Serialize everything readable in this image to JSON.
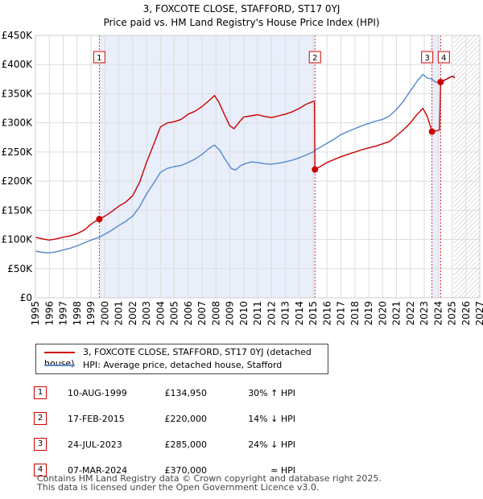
{
  "title_line1": "3, FOXCOTE CLOSE, STAFFORD, ST17 0YJ",
  "title_line2": "Price paid vs. HM Land Registry's House Price Index (HPI)",
  "chart_data": {
    "type": "line",
    "title": "3, FOXCOTE CLOSE, STAFFORD, ST17 0YJ — Price paid vs. HM Land Registry's House Price Index (HPI)",
    "xlim": [
      1995,
      2027
    ],
    "ylim": [
      0,
      450000
    ],
    "x_ticks": [
      "1995",
      "1996",
      "1997",
      "1998",
      "1999",
      "2000",
      "2001",
      "2002",
      "2003",
      "2004",
      "2005",
      "2006",
      "2007",
      "2008",
      "2009",
      "2010",
      "2011",
      "2012",
      "2013",
      "2014",
      "2015",
      "2016",
      "2017",
      "2018",
      "2019",
      "2020",
      "2021",
      "2022",
      "2023",
      "2024",
      "2025",
      "2026",
      "2027"
    ],
    "y_ticks": [
      {
        "value": 0,
        "label": "£0"
      },
      {
        "value": 50000,
        "label": "£50K"
      },
      {
        "value": 100000,
        "label": "£100K"
      },
      {
        "value": 150000,
        "label": "£150K"
      },
      {
        "value": 200000,
        "label": "£200K"
      },
      {
        "value": 250000,
        "label": "£250K"
      },
      {
        "value": 300000,
        "label": "£300K"
      },
      {
        "value": 350000,
        "label": "£350K"
      },
      {
        "value": 400000,
        "label": "£400K"
      },
      {
        "value": 450000,
        "label": "£450K"
      }
    ],
    "shaded_ranges": [
      [
        1999.6,
        2015.13
      ],
      [
        2023.56,
        2024.18
      ]
    ],
    "forecast_start": 2025.1,
    "series": [
      {
        "name": "3, FOXCOTE CLOSE, STAFFORD, ST17 0YJ (detached house)",
        "color": "#cc0000",
        "points": [
          [
            1995.0,
            104000
          ],
          [
            1995.5,
            101000
          ],
          [
            1996.0,
            99000
          ],
          [
            1996.5,
            101000
          ],
          [
            1997.0,
            104000
          ],
          [
            1997.5,
            106000
          ],
          [
            1998.0,
            110000
          ],
          [
            1998.5,
            116000
          ],
          [
            1999.0,
            126000
          ],
          [
            1999.3,
            131000
          ],
          [
            1999.6,
            134950
          ],
          [
            2000.0,
            140000
          ],
          [
            2000.5,
            148000
          ],
          [
            2001.0,
            157000
          ],
          [
            2001.5,
            164000
          ],
          [
            2002.0,
            175000
          ],
          [
            2002.5,
            198000
          ],
          [
            2003.0,
            232000
          ],
          [
            2003.5,
            262000
          ],
          [
            2004.0,
            293000
          ],
          [
            2004.5,
            300000
          ],
          [
            2005.0,
            302000
          ],
          [
            2005.5,
            306000
          ],
          [
            2006.0,
            315000
          ],
          [
            2006.5,
            320000
          ],
          [
            2007.0,
            328000
          ],
          [
            2007.5,
            338000
          ],
          [
            2007.9,
            347000
          ],
          [
            2008.2,
            336000
          ],
          [
            2008.6,
            315000
          ],
          [
            2009.0,
            295000
          ],
          [
            2009.3,
            290000
          ],
          [
            2009.7,
            302000
          ],
          [
            2010.0,
            310000
          ],
          [
            2010.5,
            312000
          ],
          [
            2011.0,
            314000
          ],
          [
            2011.5,
            311000
          ],
          [
            2012.0,
            309000
          ],
          [
            2012.5,
            312000
          ],
          [
            2013.0,
            315000
          ],
          [
            2013.5,
            319000
          ],
          [
            2014.0,
            325000
          ],
          [
            2014.5,
            332000
          ],
          [
            2015.0,
            337000
          ],
          [
            2015.1,
            336000
          ],
          [
            2015.13,
            220000
          ],
          [
            2015.5,
            225000
          ],
          [
            2016.0,
            232000
          ],
          [
            2016.5,
            237000
          ],
          [
            2017.0,
            242000
          ],
          [
            2017.5,
            246000
          ],
          [
            2018.0,
            250000
          ],
          [
            2018.5,
            254000
          ],
          [
            2019.0,
            257000
          ],
          [
            2019.5,
            260000
          ],
          [
            2020.0,
            264000
          ],
          [
            2020.5,
            268000
          ],
          [
            2021.0,
            278000
          ],
          [
            2021.5,
            288000
          ],
          [
            2022.0,
            300000
          ],
          [
            2022.5,
            315000
          ],
          [
            2022.9,
            325000
          ],
          [
            2023.2,
            312000
          ],
          [
            2023.5,
            290000
          ],
          [
            2023.56,
            285000
          ],
          [
            2023.8,
            286000
          ],
          [
            2024.0,
            287000
          ],
          [
            2024.1,
            288000
          ],
          [
            2024.18,
            370000
          ],
          [
            2024.4,
            373000
          ],
          [
            2024.7,
            376000
          ],
          [
            2025.0,
            380000
          ],
          [
            2025.2,
            377000
          ]
        ]
      },
      {
        "name": "HPI: Average price, detached house, Stafford",
        "color": "#5588cc",
        "points": [
          [
            1995.0,
            80000
          ],
          [
            1995.5,
            78000
          ],
          [
            1996.0,
            77000
          ],
          [
            1996.5,
            79000
          ],
          [
            1997.0,
            82000
          ],
          [
            1997.5,
            85000
          ],
          [
            1998.0,
            89000
          ],
          [
            1998.5,
            94000
          ],
          [
            1999.0,
            99000
          ],
          [
            1999.6,
            104000
          ],
          [
            2000.0,
            109000
          ],
          [
            2000.5,
            116000
          ],
          [
            2001.0,
            124000
          ],
          [
            2001.5,
            131000
          ],
          [
            2002.0,
            140000
          ],
          [
            2002.5,
            156000
          ],
          [
            2003.0,
            178000
          ],
          [
            2003.5,
            196000
          ],
          [
            2004.0,
            215000
          ],
          [
            2004.5,
            222000
          ],
          [
            2005.0,
            225000
          ],
          [
            2005.5,
            227000
          ],
          [
            2006.0,
            232000
          ],
          [
            2006.5,
            238000
          ],
          [
            2007.0,
            246000
          ],
          [
            2007.5,
            256000
          ],
          [
            2007.9,
            262000
          ],
          [
            2008.3,
            252000
          ],
          [
            2008.7,
            236000
          ],
          [
            2009.1,
            222000
          ],
          [
            2009.4,
            219000
          ],
          [
            2009.8,
            227000
          ],
          [
            2010.2,
            231000
          ],
          [
            2010.6,
            233000
          ],
          [
            2011.0,
            232000
          ],
          [
            2011.5,
            230000
          ],
          [
            2012.0,
            229000
          ],
          [
            2012.5,
            231000
          ],
          [
            2013.0,
            233000
          ],
          [
            2013.5,
            236000
          ],
          [
            2014.0,
            240000
          ],
          [
            2014.5,
            245000
          ],
          [
            2015.0,
            250000
          ],
          [
            2015.13,
            253000
          ],
          [
            2015.5,
            258000
          ],
          [
            2016.0,
            265000
          ],
          [
            2016.5,
            272000
          ],
          [
            2017.0,
            280000
          ],
          [
            2017.5,
            285000
          ],
          [
            2018.0,
            290000
          ],
          [
            2018.5,
            295000
          ],
          [
            2019.0,
            299000
          ],
          [
            2019.5,
            303000
          ],
          [
            2020.0,
            306000
          ],
          [
            2020.5,
            312000
          ],
          [
            2021.0,
            323000
          ],
          [
            2021.5,
            337000
          ],
          [
            2022.0,
            355000
          ],
          [
            2022.5,
            372000
          ],
          [
            2022.9,
            383000
          ],
          [
            2023.2,
            377000
          ],
          [
            2023.56,
            375000
          ],
          [
            2023.8,
            370000
          ],
          [
            2024.18,
            370000
          ],
          [
            2024.4,
            372000
          ],
          [
            2024.8,
            378000
          ],
          [
            2025.2,
            381000
          ]
        ]
      }
    ],
    "markers": [
      {
        "label": "1",
        "x": 1999.6,
        "y": 134950
      },
      {
        "label": "2",
        "x": 2015.13,
        "y": 220000
      },
      {
        "label": "3",
        "x": 2023.56,
        "y": 285000
      },
      {
        "label": "4",
        "x": 2024.18,
        "y": 370000
      }
    ]
  },
  "legend": {
    "property_label": "3, FOXCOTE CLOSE, STAFFORD, ST17 0YJ (detached house)",
    "hpi_label": "HPI: Average price, detached house, Stafford"
  },
  "transactions": [
    {
      "num": "1",
      "date": "10-AUG-1999",
      "price": "£134,950",
      "hpi": "30% ↑ HPI"
    },
    {
      "num": "2",
      "date": "17-FEB-2015",
      "price": "£220,000",
      "hpi": "14% ↓ HPI"
    },
    {
      "num": "3",
      "date": "24-JUL-2023",
      "price": "£285,000",
      "hpi": "24% ↓ HPI"
    },
    {
      "num": "4",
      "date": "07-MAR-2024",
      "price": "£370,000",
      "hpi": "≈ HPI"
    }
  ],
  "footer_line1": "Contains HM Land Registry data © Crown copyright and database right 2025.",
  "footer_line2": "This data is licensed under the Open Government Licence v3.0."
}
